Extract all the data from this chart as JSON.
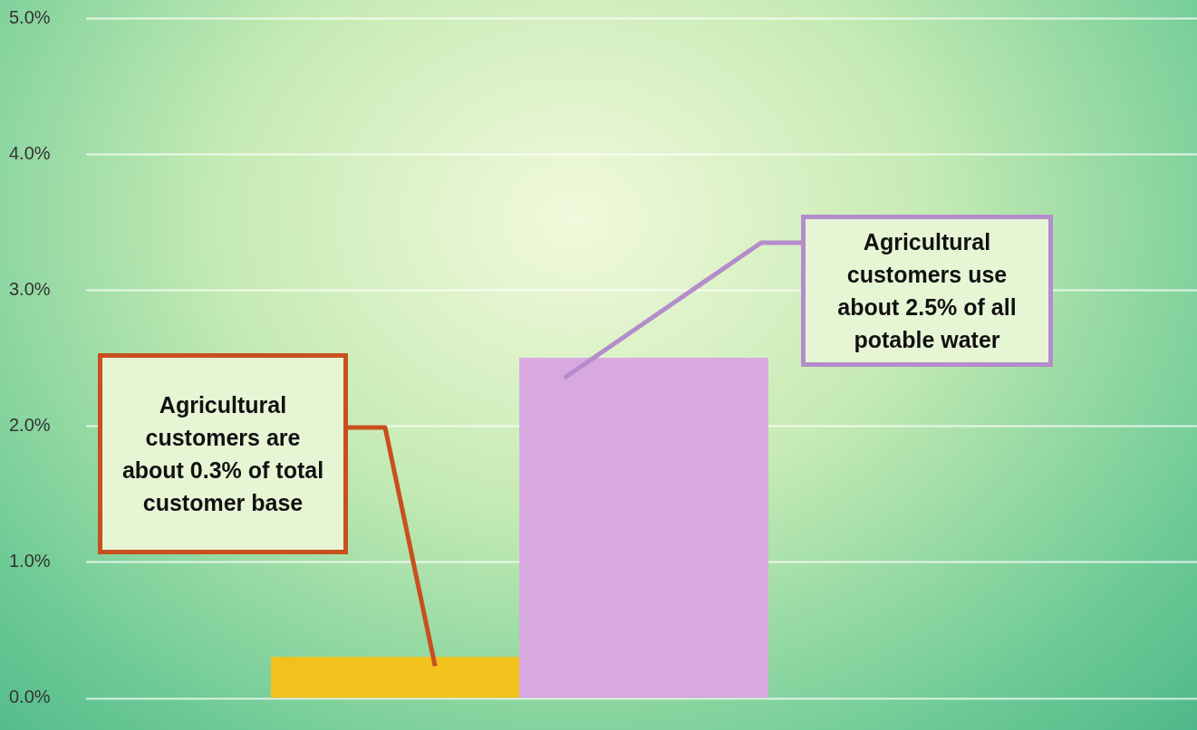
{
  "chart_data": {
    "type": "bar",
    "categories": [
      null,
      null
    ],
    "values": [
      0.3,
      2.5
    ],
    "colors": [
      "#f2c21c",
      "#d8a8e0"
    ],
    "ylim": [
      0,
      5
    ],
    "yticks": [
      {
        "value": 0,
        "label": "0.0%"
      },
      {
        "value": 1,
        "label": "1.0%"
      },
      {
        "value": 2,
        "label": "2.0%"
      },
      {
        "value": 3,
        "label": "3.0%"
      },
      {
        "value": 4,
        "label": "4.0%"
      },
      {
        "value": 5,
        "label": "5.0%"
      }
    ],
    "grid": "y",
    "legend": false,
    "annotations": [
      "Agricultural customers are about 0.3% of total customer base",
      "Agricultural customers use about 2.5% of all potable water"
    ]
  }
}
